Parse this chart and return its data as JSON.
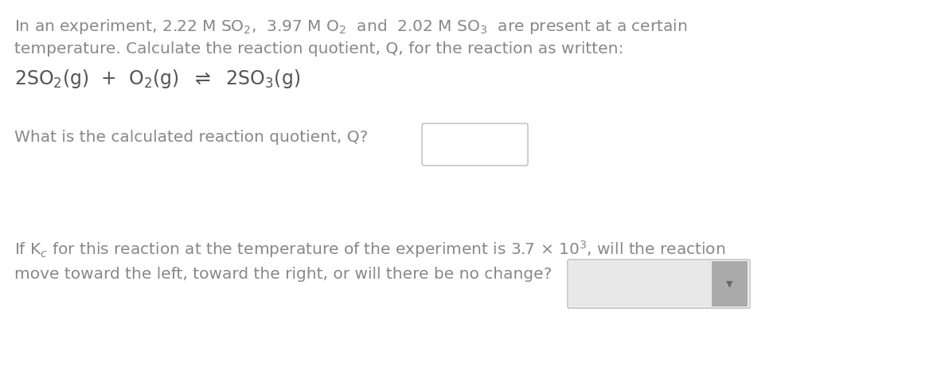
{
  "background_color": "#ffffff",
  "text_color": "#888888",
  "eq_color": "#555555",
  "font_size_body": 14.5,
  "font_size_eq": 17,
  "box_border": "#bbbbbb",
  "box_fill": "#ffffff",
  "drop_fill": "#e0e0e0",
  "drop_arrow_fill": "#aaaaaa",
  "line1": "In an experiment, 2.22 M SO$_2$,  3.97 M O$_2$  and  2.02 M SO$_3$  are present at a certain",
  "line2": "temperature. Calculate the reaction quotient, Q, for the reaction as written:",
  "equation": "2SO$_2$(g)  +  O$_2$(g)  $\\rightleftharpoons$  2SO$_3$(g)",
  "question": "What is the calculated reaction quotient, Q?",
  "bottom1": "If K$_c$ for this reaction at the temperature of the experiment is 3.7 × 10$^3$, will the reaction",
  "bottom2": "move toward the left, toward the right, or will there be no change?"
}
